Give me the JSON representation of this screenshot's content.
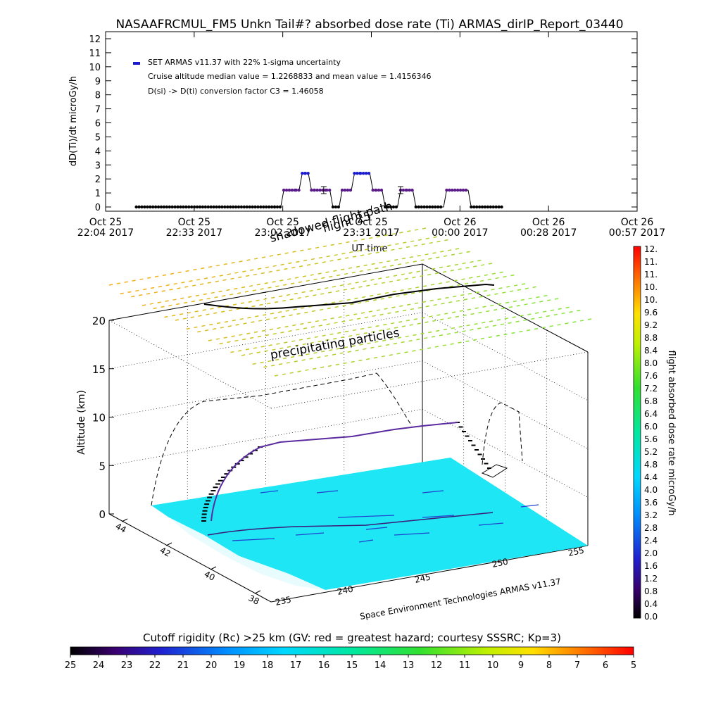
{
  "title": "NASAAFRCMUL_FM5 Unkn Tail#? absorbed dose rate (Ti) ARMAS_dirIP_Report_03440",
  "top_chart": {
    "ylabel": "dD(Ti)/dt microGy/h",
    "yticks": [
      "0",
      "1",
      "2",
      "3",
      "4",
      "5",
      "6",
      "7",
      "8",
      "9",
      "10",
      "11",
      "12"
    ],
    "xlabel": "UT time",
    "xticks": [
      {
        "l1": "Oct 25",
        "l2": "22:04 2017"
      },
      {
        "l1": "Oct 25",
        "l2": "22:33 2017"
      },
      {
        "l1": "Oct 25",
        "l2": "23:02 2017"
      },
      {
        "l1": "Oct 25",
        "l2": "23:31 2017"
      },
      {
        "l1": "Oct 26",
        "l2": "00:00 2017"
      },
      {
        "l1": "Oct 26",
        "l2": "00:28 2017"
      },
      {
        "l1": "Oct 26",
        "l2": "00:57 2017"
      }
    ],
    "legend": "SET ARMAS v11.37 with 22% 1-sigma uncertainty",
    "note1": "Cruise altitude median value = 1.2268833 and mean value = 1.4156346",
    "note2": "D(si) -> D(ti) conversion factor C3 = 1.46058",
    "overlay1": "shadowed flight path",
    "overlay2": "flight 25"
  },
  "chart_data": {
    "type": "line",
    "title": "NASAAFRCMUL_FM5 Unkn Tail#? absorbed dose rate (Ti) ARMAS_dirIP_Report_03440",
    "xlabel": "UT time",
    "ylabel": "dD(Ti)/dt microGy/h",
    "ylim": [
      0,
      12
    ],
    "xlim_minutes_from_start": [
      0,
      173
    ],
    "series": [
      {
        "name": "SET ARMAS v11.37 with 22% 1-sigma uncertainty",
        "x_minutes": [
          10,
          55,
          57,
          58,
          62,
          63,
          64,
          65,
          66,
          67,
          68,
          72,
          73,
          74,
          76,
          77,
          80,
          81,
          83,
          86,
          87,
          88,
          90,
          91,
          95,
          96,
          98,
          100,
          101,
          110,
          111,
          118,
          119,
          129
        ],
        "values": [
          0,
          0,
          0,
          1.2,
          1.2,
          1.2,
          2.4,
          2.4,
          2.4,
          1.2,
          1.2,
          1.2,
          1.2,
          0,
          0,
          1.2,
          1.2,
          2.4,
          2.4,
          2.4,
          1.2,
          1.2,
          1.2,
          0,
          0,
          1.2,
          1.2,
          1.2,
          0,
          0,
          1.2,
          1.2,
          0,
          0
        ]
      }
    ],
    "error_bars": [
      {
        "x_minutes": 71,
        "value": 1.2
      },
      {
        "x_minutes": 96,
        "value": 1.2
      }
    ]
  },
  "plot3d": {
    "zlabel": "Altitude (km)",
    "zticks": [
      "0",
      "5",
      "10",
      "15",
      "20"
    ],
    "lat_ticks": [
      "44",
      "42",
      "40",
      "38"
    ],
    "lon_ticks": [
      "235",
      "240",
      "245",
      "250",
      "255"
    ],
    "annotation": "precipitating particles",
    "credit": "Space Environment Technologies ARMAS v11.37"
  },
  "colorbar_right": {
    "label": "flight absorbed dose rate microGy/h",
    "ticks": [
      "0.0",
      "0.4",
      "0.8",
      "1.2",
      "1.6",
      "2.0",
      "2.4",
      "2.8",
      "3.2",
      "3.6",
      "4.0",
      "4.4",
      "4.8",
      "5.2",
      "5.6",
      "6.0",
      "6.4",
      "6.8",
      "7.2",
      "7.6",
      "8.0",
      "8.4",
      "8.8",
      "9.2",
      "9.6",
      "10.",
      "10.",
      "11.",
      "11.",
      "12."
    ]
  },
  "colorbar_bottom": {
    "label": "Cutoff rigidity (Rc) >25 km (GV: red = greatest hazard; courtesy SSSRC; Kp=3)",
    "ticks": [
      "25",
      "24",
      "23",
      "22",
      "21",
      "20",
      "19",
      "18",
      "17",
      "16",
      "15",
      "14",
      "13",
      "12",
      "11",
      "10",
      "9",
      "8",
      "7",
      "6",
      "5"
    ]
  },
  "colors": {
    "series": "#1a1ad0",
    "ground": "#1ee6f5",
    "trace": "#3a1a7a"
  }
}
